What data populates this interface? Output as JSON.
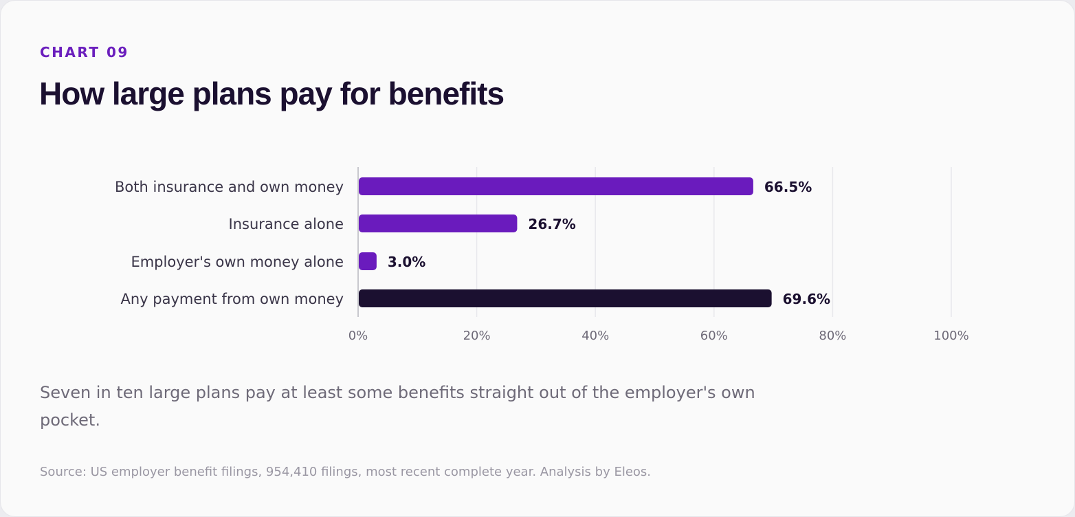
{
  "eyebrow": "CHART 09",
  "title": "How large plans pay for benefits",
  "caption": "Seven in ten large plans pay at least some benefits straight out of the employer's own pocket.",
  "source": "Source: US employer benefit filings, 954,410 filings, most recent complete year. Analysis by Eleos.",
  "colors": {
    "primary_bar": "#6a1bbd",
    "highlight_bar": "#1b1030",
    "grid": "#e8e8ec",
    "axis": "#b8b8c0",
    "label": "#3a3548",
    "value_label": "#1b1030",
    "tick": "#6e6a78"
  },
  "chart_data": {
    "type": "bar",
    "orientation": "horizontal",
    "categories": [
      "Both insurance and own money",
      "Insurance alone",
      "Employer's own money alone",
      "Any payment from own money"
    ],
    "values": [
      66.5,
      26.7,
      3.0,
      69.6
    ],
    "value_labels": [
      "66.5%",
      "26.7%",
      "3.0%",
      "69.6%"
    ],
    "highlight_index": 3,
    "xlim": [
      0,
      100
    ],
    "x_ticks": [
      0,
      20,
      40,
      60,
      80,
      100
    ],
    "x_tick_labels": [
      "0%",
      "20%",
      "40%",
      "60%",
      "80%",
      "100%"
    ],
    "grid": true,
    "legend": "none"
  }
}
